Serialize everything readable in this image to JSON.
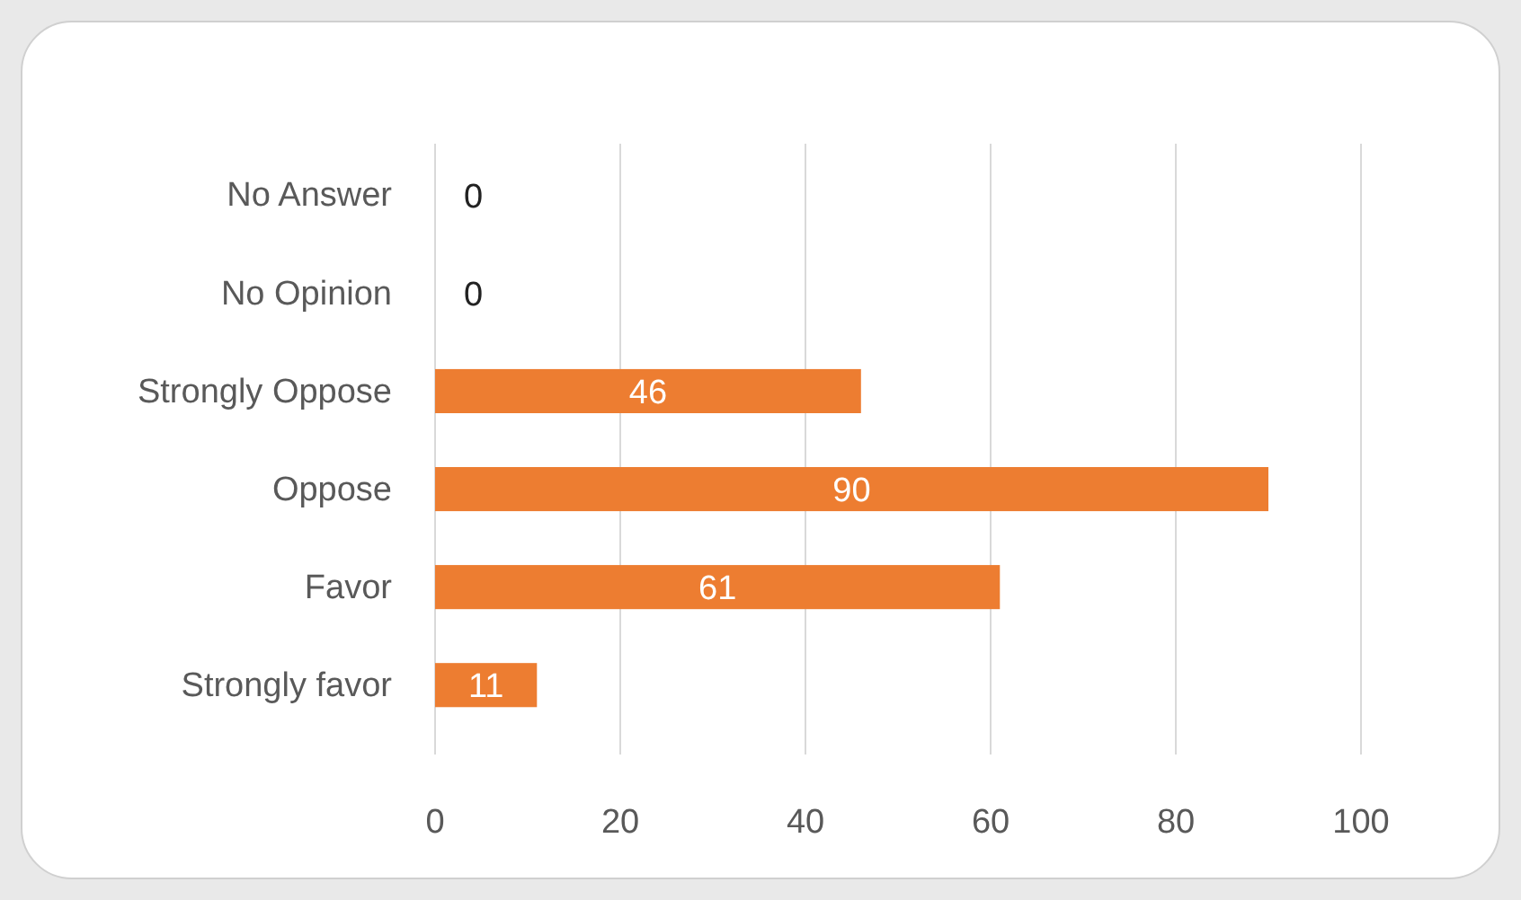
{
  "chart_data": {
    "type": "bar",
    "orientation": "horizontal",
    "categories": [
      "No Answer",
      "No Opinion",
      "Strongly Oppose",
      "Oppose",
      "Favor",
      "Strongly favor"
    ],
    "values": [
      0,
      0,
      46,
      90,
      61,
      11
    ],
    "color": "#ed7d31",
    "xlim": [
      0,
      100
    ],
    "xticks": [
      0,
      20,
      40,
      60,
      80,
      100
    ],
    "grid": "x",
    "data_labels": true
  }
}
